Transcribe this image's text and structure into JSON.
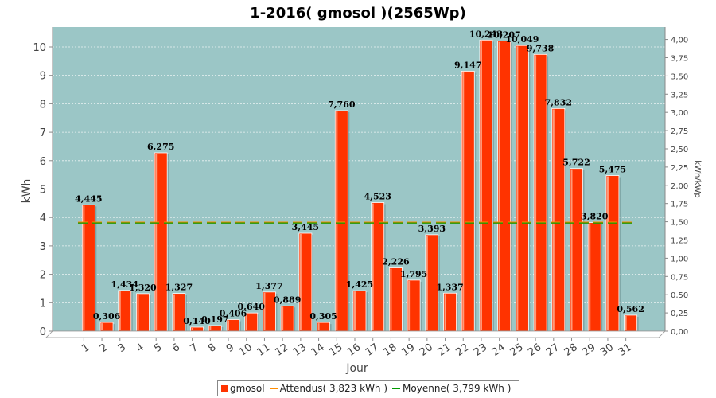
{
  "chart_data": {
    "type": "bar",
    "title": "1-2016( gmosol )(2565Wp)",
    "xlabel": "Jour",
    "ylabel": "kWh",
    "ylabel_right": "kWh/kWp",
    "categories": [
      "1",
      "2",
      "3",
      "4",
      "5",
      "6",
      "7",
      "8",
      "9",
      "10",
      "11",
      "12",
      "13",
      "14",
      "15",
      "16",
      "17",
      "18",
      "19",
      "20",
      "21",
      "22",
      "23",
      "24",
      "25",
      "26",
      "27",
      "28",
      "29",
      "30",
      "31"
    ],
    "series": [
      {
        "name": "gmosol",
        "values": [
          4.445,
          0.306,
          1.434,
          1.32,
          6.275,
          1.327,
          0.14,
          0.197,
          0.406,
          0.64,
          1.377,
          0.889,
          3.445,
          0.305,
          7.76,
          1.425,
          4.523,
          2.226,
          1.795,
          3.393,
          1.337,
          9.147,
          10.243,
          10.207,
          10.049,
          9.738,
          7.832,
          5.722,
          3.82,
          5.475,
          0.562
        ],
        "labels": [
          "4,445",
          "0,306",
          "1,434",
          "1,320",
          "6,275",
          "1,327",
          "0,140",
          "0,197",
          "0,406",
          "0,640",
          "1,377",
          "0,889",
          "3,445",
          "0,305",
          "7,760",
          "1,425",
          "4,523",
          "2,226",
          "1,795",
          "3,393",
          "1,337",
          "9,147",
          "10,243",
          "10,207",
          "10,049",
          "9,738",
          "7,832",
          "5,722",
          "3,820",
          "5,475",
          "0,562"
        ]
      }
    ],
    "attendus": 3.823,
    "moyenne": 3.799,
    "ylim": [
      0,
      10.7
    ],
    "yticks": [
      "0",
      "1",
      "2",
      "3",
      "4",
      "5",
      "6",
      "7",
      "8",
      "9",
      "10"
    ],
    "ylim_right": [
      0,
      4.17
    ],
    "yticks_right": [
      "0,00",
      "0,25",
      "0,50",
      "0,75",
      "1,00",
      "1,25",
      "1,50",
      "1,75",
      "2,00",
      "2,25",
      "2,50",
      "2,75",
      "3,00",
      "3,25",
      "3,50",
      "3,75",
      "4,00"
    ],
    "grid": true,
    "legend": [
      {
        "label": "gmosol",
        "color": "#ff3300"
      },
      {
        "label": "Attendus( 3,823 kWh )",
        "color": "#ff8c00"
      },
      {
        "label": "Moyenne( 3,799 kWh )",
        "color": "#009900"
      }
    ],
    "colors": {
      "bar": "#ff3300",
      "bar_light": "#ff9a7a",
      "plot_bg": "#9bc6c6",
      "attendus": "#ff8c00",
      "moyenne": "#009900"
    }
  }
}
